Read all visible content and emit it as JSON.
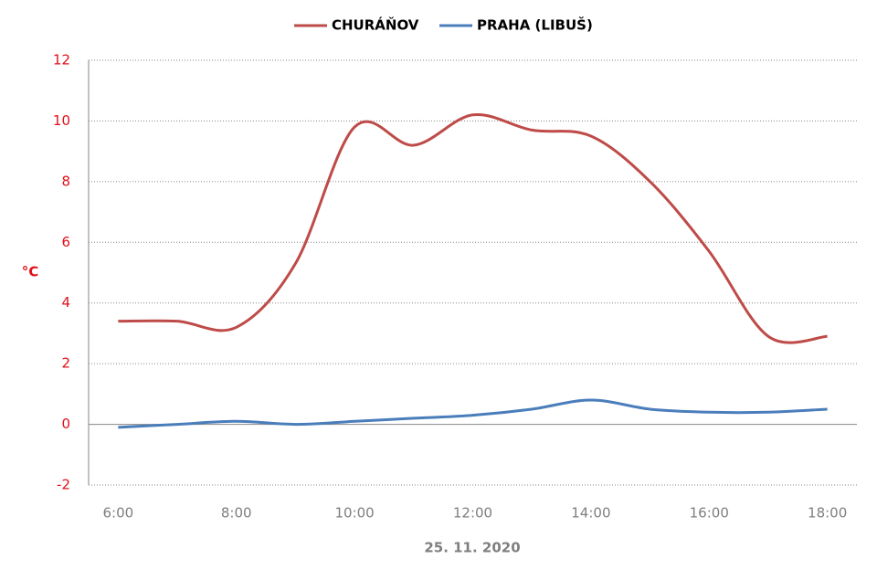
{
  "chart_data": {
    "type": "line",
    "x_label": "25. 11. 2020",
    "y_label": "°C",
    "categories": [
      "6:00",
      null,
      "8:00",
      null,
      "10:00",
      null,
      "12:00",
      null,
      "14:00",
      null,
      "16:00",
      null,
      "18:00"
    ],
    "series": [
      {
        "name": "CHURÁŇOV",
        "color": "#be4b48",
        "values": [
          3.4,
          3.4,
          3.2,
          5.3,
          9.8,
          9.2,
          10.2,
          9.7,
          9.5,
          8.0,
          5.7,
          2.9,
          2.9
        ]
      },
      {
        "name": "PRAHA (LIBUŠ)",
        "color": "#4a7ebb",
        "values": [
          -0.1,
          0.0,
          0.1,
          0.0,
          0.1,
          0.2,
          0.3,
          0.5,
          0.8,
          0.5,
          0.4,
          0.4,
          0.5
        ]
      }
    ],
    "ylim": [
      -2,
      12
    ],
    "yticks": [
      -2,
      0,
      2,
      4,
      6,
      8,
      10,
      12
    ],
    "grid": true,
    "legend": "top"
  }
}
